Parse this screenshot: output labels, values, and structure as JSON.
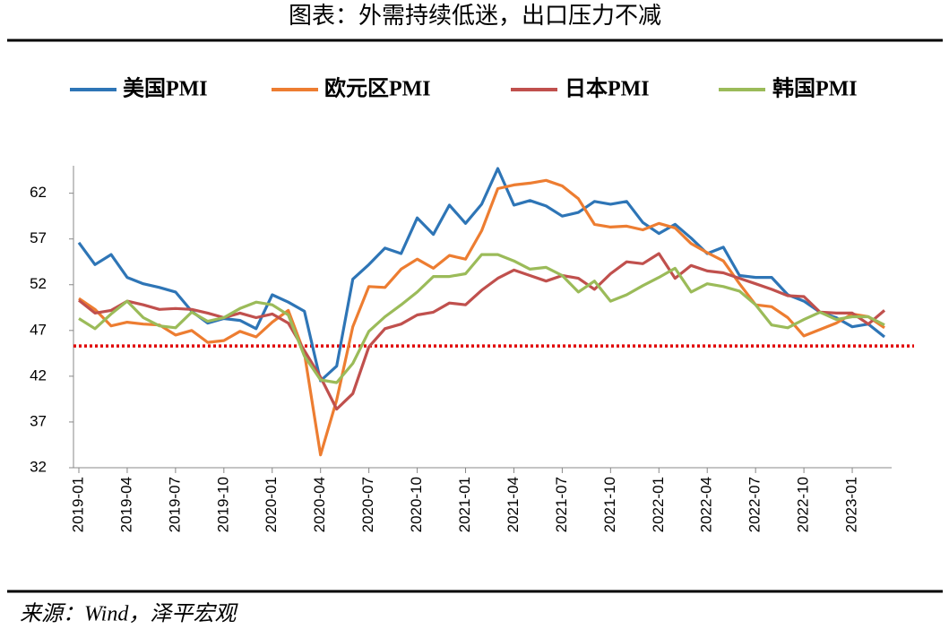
{
  "chart_data": {
    "type": "line",
    "title": "图表：外需持续低迷，出口压力不减",
    "source": "来源：Wind，泽平宏观",
    "categories": [
      "2019-01",
      null,
      null,
      "2019-04",
      null,
      null,
      "2019-07",
      null,
      null,
      "2019-10",
      null,
      null,
      "2020-01",
      null,
      null,
      "2020-04",
      null,
      null,
      "2020-07",
      null,
      null,
      "2020-10",
      null,
      null,
      "2021-01",
      null,
      null,
      "2021-04",
      null,
      null,
      "2021-07",
      null,
      null,
      "2021-10",
      null,
      null,
      "2022-01",
      null,
      null,
      "2022-04",
      null,
      null,
      "2022-07",
      null,
      null,
      "2022-10",
      null,
      null,
      "2023-01",
      null,
      null
    ],
    "series": [
      {
        "name": "美国PMI",
        "color": "#2e75b6",
        "values": [
          56.6,
          54.2,
          55.3,
          52.8,
          52.1,
          51.7,
          51.2,
          49.1,
          47.8,
          48.3,
          48.1,
          47.2,
          50.9,
          50.1,
          49.1,
          41.5,
          43.1,
          52.6,
          54.2,
          56.0,
          55.4,
          59.3,
          57.5,
          60.7,
          58.7,
          60.8,
          64.7,
          60.7,
          61.2,
          60.6,
          59.5,
          59.9,
          61.1,
          60.8,
          61.1,
          58.8,
          57.6,
          58.6,
          57.1,
          55.4,
          56.1,
          53.0,
          52.8,
          52.8,
          50.9,
          50.2,
          49.0,
          48.4,
          47.4,
          47.7,
          46.3
        ]
      },
      {
        "name": "欧元区PMI",
        "color": "#ed7d31",
        "values": [
          50.5,
          49.3,
          47.5,
          47.9,
          47.7,
          47.6,
          46.5,
          47.0,
          45.7,
          45.9,
          46.9,
          46.3,
          47.9,
          49.2,
          44.5,
          33.4,
          39.4,
          47.4,
          51.8,
          51.7,
          53.7,
          54.8,
          53.8,
          55.2,
          54.8,
          57.9,
          62.5,
          62.9,
          63.1,
          63.4,
          62.8,
          61.4,
          58.6,
          58.3,
          58.4,
          58.0,
          58.7,
          58.2,
          56.5,
          55.5,
          54.6,
          52.1,
          49.8,
          49.6,
          48.4,
          46.4,
          47.1,
          47.8,
          48.8,
          48.5,
          47.3
        ]
      },
      {
        "name": "日本PMI",
        "color": "#c0504d",
        "values": [
          50.3,
          48.9,
          49.2,
          50.2,
          49.8,
          49.3,
          49.4,
          49.3,
          48.9,
          48.4,
          48.9,
          48.4,
          48.8,
          47.8,
          44.8,
          41.9,
          38.4,
          40.1,
          45.2,
          47.2,
          47.7,
          48.7,
          49.0,
          50.0,
          49.8,
          51.4,
          52.7,
          53.6,
          53.0,
          52.4,
          53.0,
          52.7,
          51.5,
          53.2,
          54.5,
          54.3,
          55.4,
          52.7,
          54.1,
          53.5,
          53.3,
          52.7,
          52.1,
          51.5,
          50.8,
          50.7,
          49.0,
          48.9,
          48.9,
          47.7,
          49.2
        ]
      },
      {
        "name": "韩国PMI",
        "color": "#9bbb59",
        "values": [
          48.3,
          47.2,
          48.8,
          50.2,
          48.4,
          47.5,
          47.3,
          49.0,
          48.0,
          48.4,
          49.4,
          50.1,
          49.8,
          48.7,
          44.2,
          41.6,
          41.3,
          43.4,
          46.9,
          48.5,
          49.8,
          51.2,
          52.9,
          52.9,
          53.2,
          55.3,
          55.3,
          54.6,
          53.7,
          53.9,
          53.0,
          51.2,
          52.4,
          50.2,
          50.9,
          51.9,
          52.8,
          53.8,
          51.2,
          52.1,
          51.8,
          51.3,
          49.8,
          47.6,
          47.3,
          48.2,
          49.0,
          48.2,
          48.5,
          48.5,
          47.6
        ]
      }
    ],
    "reference_line": {
      "value": 45.3,
      "color": "#e00000"
    },
    "ylim": [
      32,
      65
    ],
    "yticks": [
      32,
      37,
      42,
      47,
      52,
      57,
      62
    ],
    "legend": "top"
  }
}
